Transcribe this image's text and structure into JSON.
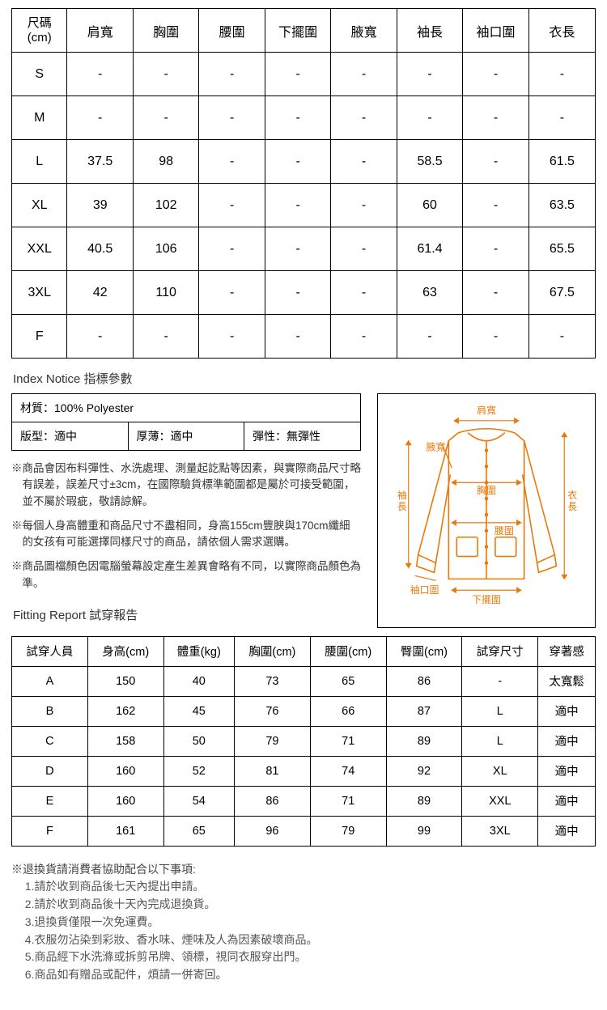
{
  "size_table": {
    "columns": [
      "尺碼\n(cm)",
      "肩寬",
      "胸圍",
      "腰圍",
      "下擺圍",
      "腋寬",
      "袖長",
      "袖口圍",
      "衣長"
    ],
    "rows": [
      [
        "S",
        "-",
        "-",
        "-",
        "-",
        "-",
        "-",
        "-",
        "-"
      ],
      [
        "M",
        "-",
        "-",
        "-",
        "-",
        "-",
        "-",
        "-",
        "-"
      ],
      [
        "L",
        "37.5",
        "98",
        "-",
        "-",
        "-",
        "58.5",
        "-",
        "61.5"
      ],
      [
        "XL",
        "39",
        "102",
        "-",
        "-",
        "-",
        "60",
        "-",
        "63.5"
      ],
      [
        "XXL",
        "40.5",
        "106",
        "-",
        "-",
        "-",
        "61.4",
        "-",
        "65.5"
      ],
      [
        "3XL",
        "42",
        "110",
        "-",
        "-",
        "-",
        "63",
        "-",
        "67.5"
      ],
      [
        "F",
        "-",
        "-",
        "-",
        "-",
        "-",
        "-",
        "-",
        "-"
      ]
    ],
    "col_widths_pct": [
      9.5,
      11.3,
      11.3,
      11.3,
      11.3,
      11.3,
      11.3,
      11.3,
      11.4
    ]
  },
  "index_notice_title": "Index Notice 指標參數",
  "spec": {
    "material": "材質：100% Polyester",
    "fit": "版型：適中",
    "thickness": "厚薄：適中",
    "stretch": "彈性：無彈性"
  },
  "notes": {
    "n1": "※商品會因布料彈性、水洗處理、測量起訖點等因素，與實際商品尺寸略有誤差，誤差尺寸±3cm，在國際驗貨標準範圍都是屬於可接受範圍，並不屬於瑕疵，敬請諒解。",
    "n2": "※每個人身高體重和商品尺寸不盡相同，身高155cm豐腴與170cm纖細的女孩有可能選擇同樣尺寸的商品，請依個人需求選購。",
    "n3": "※商品圖檔顏色因電腦螢幕設定產生差異會略有不同，以實際商品顏色為準。"
  },
  "diagram": {
    "stroke": "#e8790a",
    "stroke_width": 1.6,
    "labels": {
      "shoulder": "肩寬",
      "armhole": "腋寬",
      "sleeve": "袖長",
      "bust": "胸圍",
      "waist": "腰圍",
      "cuff": "袖口圍",
      "hem": "下擺圍",
      "length": "衣長"
    }
  },
  "fitting_title": "Fitting Report 試穿報告",
  "fitting_table": {
    "columns": [
      "試穿人員",
      "身高(cm)",
      "體重(kg)",
      "胸圍(cm)",
      "腰圍(cm)",
      "臀圍(cm)",
      "試穿尺寸",
      "穿著感"
    ],
    "rows": [
      [
        "A",
        "150",
        "40",
        "73",
        "65",
        "86",
        "-",
        "太寬鬆"
      ],
      [
        "B",
        "162",
        "45",
        "76",
        "66",
        "87",
        "L",
        "適中"
      ],
      [
        "C",
        "158",
        "50",
        "79",
        "71",
        "89",
        "L",
        "適中"
      ],
      [
        "D",
        "160",
        "52",
        "81",
        "74",
        "92",
        "XL",
        "適中"
      ],
      [
        "E",
        "160",
        "54",
        "86",
        "71",
        "89",
        "XXL",
        "適中"
      ],
      [
        "F",
        "161",
        "65",
        "96",
        "79",
        "99",
        "3XL",
        "適中"
      ]
    ]
  },
  "return_title": "※退換貨請消費者協助配合以下事項:",
  "return_items": {
    "r1": "1.請於收到商品後七天內提出申請。",
    "r2": "2.請於收到商品後十天內完成退換貨。",
    "r3": "3.退換貨僅限一次免運費。",
    "r4": "4.衣服勿沾染到彩妝、香水味、煙味及人為因素破壞商品。",
    "r5": "5.商品經下水洗滌或拆剪吊牌、領標，視同衣服穿出門。",
    "r6": "6.商品如有贈品或配件，煩請一併寄回。"
  }
}
